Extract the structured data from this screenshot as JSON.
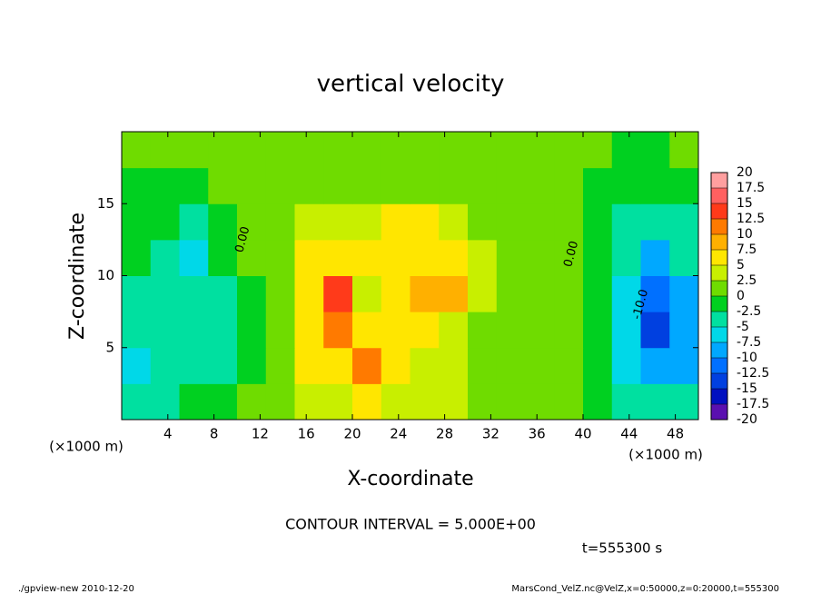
{
  "chart_data": {
    "type": "contour",
    "title": "vertical velocity",
    "xlabel": "X-coordinate",
    "ylabel": "Z-coordinate",
    "x_unit_left": "(×1000 m)",
    "x_unit_right": "(×1000 m)",
    "xlim": [
      0,
      50
    ],
    "ylim": [
      0,
      20
    ],
    "xticks": [
      4,
      8,
      12,
      16,
      20,
      24,
      28,
      32,
      36,
      40,
      44,
      48
    ],
    "yticks": [
      5,
      10,
      15
    ],
    "x": [
      1.25,
      3.75,
      6.25,
      8.75,
      11.25,
      13.75,
      16.25,
      18.75,
      21.25,
      23.75,
      26.25,
      28.75,
      31.25,
      33.75,
      36.25,
      38.75,
      41.25,
      43.75,
      46.25,
      48.75
    ],
    "y": [
      1.25,
      3.75,
      6.25,
      8.75,
      11.25,
      13.75,
      16.25,
      18.75
    ],
    "values": [
      [
        -3,
        -3,
        -1,
        -2,
        0,
        2,
        4,
        3,
        5,
        4,
        3,
        4,
        2,
        1,
        0,
        0,
        -1,
        -3,
        -4,
        -3
      ],
      [
        -7,
        -5,
        -4,
        -4,
        -1,
        2,
        6,
        5,
        12,
        5,
        4,
        3,
        1,
        1,
        0,
        0,
        -2,
        -6,
        -10,
        -8
      ],
      [
        -5,
        -4,
        -4,
        -5,
        -1,
        2,
        5,
        11,
        6,
        5,
        5,
        4,
        2,
        1,
        0,
        0,
        -2,
        -7,
        -13,
        -9
      ],
      [
        -3,
        -3,
        -5,
        -3,
        -1,
        2,
        5,
        13,
        4,
        5,
        8,
        8,
        4,
        1,
        0,
        0,
        -2,
        -7,
        -12,
        -8
      ],
      [
        -2,
        -3,
        -6,
        -2,
        0,
        2,
        5,
        6,
        5,
        7,
        7,
        7,
        4,
        1,
        1,
        0,
        -2,
        -5,
        -8,
        -5
      ],
      [
        -2,
        -2,
        -4,
        -1,
        0,
        1,
        3,
        3,
        4,
        6,
        5,
        4,
        2,
        1,
        0,
        0,
        -1,
        -3,
        -5,
        -3
      ],
      [
        -1,
        -1,
        -1,
        0,
        0,
        1,
        1,
        1,
        1,
        2,
        2,
        1,
        1,
        0,
        0,
        0,
        -1,
        -2,
        -2,
        -1
      ],
      [
        0,
        0,
        0,
        0,
        0,
        0,
        1,
        1,
        1,
        1,
        1,
        1,
        1,
        0,
        0,
        0,
        0,
        -1,
        -1,
        0
      ]
    ],
    "levels": [
      -20,
      -17.5,
      -15,
      -12.5,
      -10,
      -7.5,
      -5,
      -2.5,
      0,
      2.5,
      5,
      7.5,
      10,
      12.5,
      15,
      17.5,
      20
    ],
    "colors": [
      "#5a10b0",
      "#0010c0",
      "#0040e0",
      "#0070ff",
      "#00a8ff",
      "#00d8e8",
      "#00e0a0",
      "#00d020",
      "#6fdc00",
      "#c8ef00",
      "#ffe600",
      "#ffb000",
      "#ff7a00",
      "#ff3a1a",
      "#ff6060",
      "#ff9f9f"
    ],
    "contour_labels": [
      {
        "text": "0.00",
        "x": 10.5,
        "y": 12.5
      },
      {
        "text": "0.00",
        "x": 39,
        "y": 11.5
      },
      {
        "text": "-10.0",
        "x": 45,
        "y": 8
      }
    ],
    "contour_interval": "CONTOUR INTERVAL = 5.000E+00",
    "time_label": "t=555300 s",
    "footer_left": "./gpview-new  2010-12-20",
    "footer_right": "MarsCond_VelZ.nc@VelZ,x=0:50000,z=0:20000,t=555300"
  }
}
